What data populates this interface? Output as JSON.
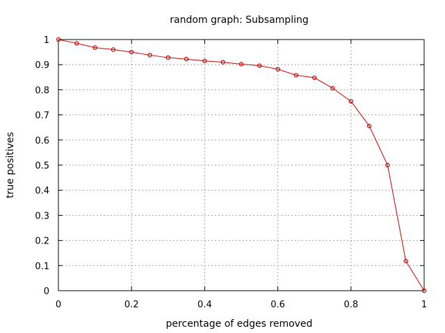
{
  "chart_data": {
    "type": "line",
    "title": "random graph: Subsampling",
    "xlabel": "percentage of edges removed",
    "ylabel": "true positives",
    "xlim": [
      0,
      1
    ],
    "ylim": [
      0,
      1
    ],
    "grid": true,
    "xticks": [
      "0",
      "0.2",
      "0.4",
      "0.6",
      "0.8",
      "1"
    ],
    "xtick_values": [
      0,
      0.2,
      0.4,
      0.6,
      0.8,
      1
    ],
    "yticks": [
      "0",
      "0.1",
      "0.2",
      "0.3",
      "0.4",
      "0.5",
      "0.6",
      "0.7",
      "0.8",
      "0.9",
      "1"
    ],
    "ytick_values": [
      0,
      0.1,
      0.2,
      0.3,
      0.4,
      0.5,
      0.6,
      0.7,
      0.8,
      0.9,
      1
    ],
    "series": [
      {
        "color": "#cc0000",
        "marker": "circle",
        "x": [
          0,
          0.05,
          0.1,
          0.15,
          0.2,
          0.25,
          0.3,
          0.35,
          0.4,
          0.45,
          0.5,
          0.55,
          0.6,
          0.65,
          0.7,
          0.75,
          0.8,
          0.85,
          0.9,
          0.95,
          1
        ],
        "y": [
          1.0,
          0.985,
          0.968,
          0.96,
          0.95,
          0.938,
          0.928,
          0.922,
          0.915,
          0.91,
          0.902,
          0.896,
          0.882,
          0.858,
          0.848,
          0.806,
          0.754,
          0.656,
          0.5,
          0.118,
          0.0
        ]
      }
    ]
  }
}
